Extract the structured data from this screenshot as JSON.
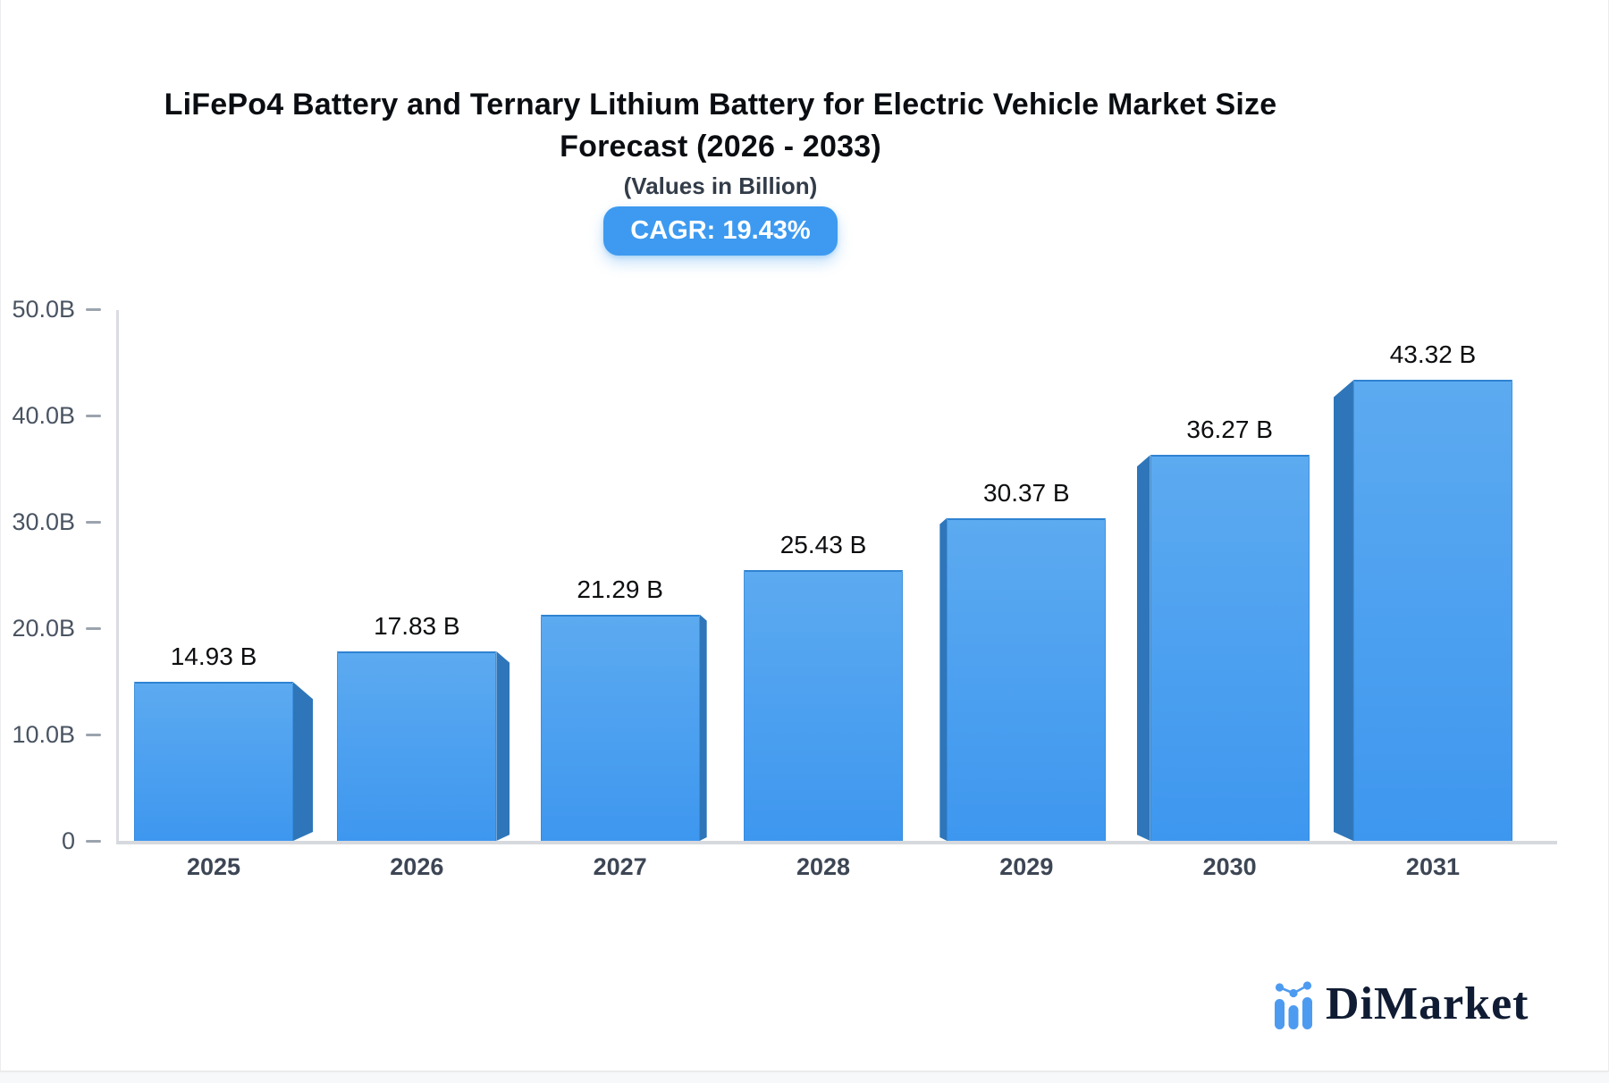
{
  "title": {
    "line1": "LiFePo4 Battery and Ternary Lithium Battery for Electric Vehicle Market Size",
    "line2": "Forecast (2026 - 2033)",
    "subtitle": "(Values in Billion)"
  },
  "badge": {
    "label": "CAGR: 19.43%",
    "color": "#3d9af0"
  },
  "chart_data": {
    "type": "bar",
    "title": "LiFePo4 Battery and Ternary Lithium Battery for Electric Vehicle Market Size Forecast (2026 - 2033)",
    "subtitle": "(Values in Billion)",
    "categories": [
      "2025",
      "2026",
      "2027",
      "2028",
      "2029",
      "2030",
      "2031"
    ],
    "values": [
      14.93,
      17.83,
      21.29,
      25.43,
      30.37,
      36.27,
      43.32
    ],
    "value_labels": [
      "14.93 B",
      "17.83 B",
      "21.29 B",
      "25.43 B",
      "30.37 B",
      "36.27 B",
      "43.32 B"
    ],
    "xlabel": "",
    "ylabel": "",
    "ylim": [
      0,
      50
    ],
    "y_axis": {
      "tick_values": [
        50,
        40,
        30,
        20,
        10,
        0
      ],
      "tick_labels": [
        "50.0B",
        "40.0B",
        "30.0B",
        "20.0B",
        "10.0B",
        "0"
      ]
    },
    "grid": false,
    "legend": false,
    "style_3d": true,
    "colors": {
      "bar_face_top": "#5caaf0",
      "bar_face_bottom": "#3e97ef",
      "bar_side": "#2e76b9",
      "bar_edge": "#2f83d2",
      "axis_line": "#d9dce2",
      "tick_label": "#4a5462",
      "category_label": "#3d4654",
      "value_label": "#0c0e10"
    }
  },
  "logo": {
    "icon": "mini-bar-chart-icon",
    "icon_color": "#4d9bf0",
    "text": "DiMarket",
    "text_color": "#101c33"
  }
}
